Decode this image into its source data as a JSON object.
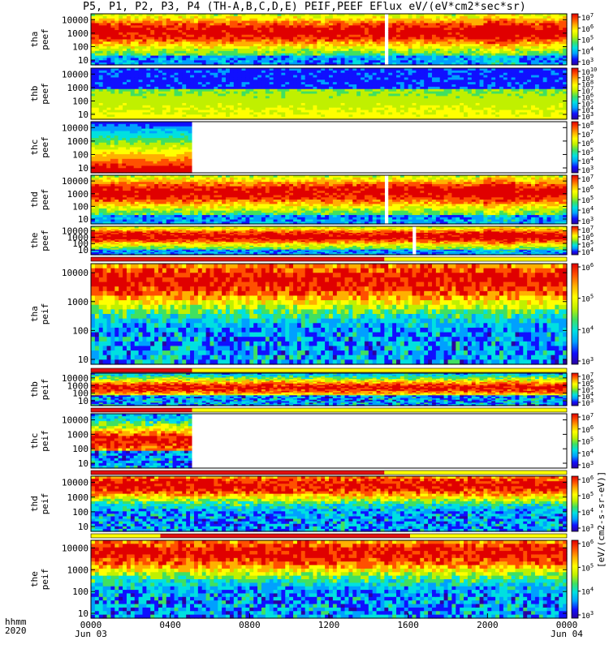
{
  "title": "P5, P1, P2, P3, P4 (TH-A,B,C,D,E) PEIF,PEEF EFlux eV/(eV*cm2*sec*sr)",
  "footer": {
    "xlabel_top": "hhmm",
    "xlabel_bottom": "2020",
    "x_ticks": [
      "0000",
      "0400",
      "0800",
      "1200",
      "1600",
      "2000",
      "0000"
    ],
    "x_dates": [
      "Jun 03",
      "",
      "",
      "",
      "",
      "",
      "Jun 04"
    ]
  },
  "colorbar_label": "[eV/(cm2-s-sr-eV)]",
  "chart_data": {
    "type": "heatmap",
    "x_range": [
      "2020-06-03 00:00",
      "2020-06-04 00:00"
    ],
    "y_scale": "log",
    "panels": [
      {
        "label": [
          "tha",
          "peef"
        ],
        "y_ticks": [
          "10",
          "100",
          "1000",
          "10000"
        ],
        "cbar_ticks": [
          "10^3",
          "10^4",
          "10^5",
          "10^6",
          "10^7"
        ],
        "flag_bar": false,
        "coverage": [
          0,
          24
        ],
        "gaps": [
          [
            14.85,
            15.0
          ]
        ]
      },
      {
        "label": [
          "thb",
          "peef"
        ],
        "y_ticks": [
          "10",
          "100",
          "1000",
          "10000"
        ],
        "cbar_ticks": [
          "10^3",
          "10^4",
          "10^5",
          "10^6",
          "10^7",
          "10^8",
          "10^9",
          "10^10"
        ],
        "flag_bar": false,
        "coverage": [
          0,
          24
        ],
        "gaps": []
      },
      {
        "label": [
          "thc",
          "peef"
        ],
        "y_ticks": [
          "10",
          "100",
          "1000",
          "10000"
        ],
        "cbar_ticks": [
          "10^3",
          "10^4",
          "10^5",
          "10^6",
          "10^7",
          "10^8"
        ],
        "flag_bar": false,
        "coverage": [
          0,
          5.1
        ],
        "gaps": []
      },
      {
        "label": [
          "thd",
          "peef"
        ],
        "y_ticks": [
          "10",
          "100",
          "1000",
          "10000"
        ],
        "cbar_ticks": [
          "10^3",
          "10^4",
          "10^5",
          "10^6",
          "10^7"
        ],
        "flag_bar": false,
        "coverage": [
          0,
          24
        ],
        "gaps": [
          [
            14.85,
            15.0
          ]
        ]
      },
      {
        "label": [
          "the",
          "peef"
        ],
        "y_ticks": [
          "10",
          "100",
          "1000",
          "10000"
        ],
        "cbar_ticks": [
          "10^4",
          "10^5",
          "10^6",
          "10^7"
        ],
        "flag_bar": true,
        "coverage": [
          0,
          24
        ],
        "gaps": [
          [
            16.2,
            16.4
          ]
        ]
      },
      {
        "label": [
          "tha",
          "peif"
        ],
        "y_ticks": [
          "10",
          "100",
          "1000",
          "10000"
        ],
        "cbar_ticks": [
          "10^3",
          "10^4",
          "10^5",
          "10^6"
        ],
        "flag_bar": true,
        "coverage": [
          0,
          24
        ],
        "gaps": []
      },
      {
        "label": [
          "thb",
          "peif"
        ],
        "y_ticks": [
          "10",
          "100",
          "1000",
          "10000"
        ],
        "cbar_ticks": [
          "10^3",
          "10^4",
          "10^5",
          "10^6",
          "10^7"
        ],
        "flag_bar": true,
        "coverage": [
          0,
          24
        ],
        "gaps": []
      },
      {
        "label": [
          "thc",
          "peif"
        ],
        "y_ticks": [
          "10",
          "100",
          "1000",
          "10000"
        ],
        "cbar_ticks": [
          "10^3",
          "10^4",
          "10^5",
          "10^6",
          "10^7"
        ],
        "flag_bar": true,
        "coverage": [
          0,
          5.1
        ],
        "gaps": []
      },
      {
        "label": [
          "thd",
          "peif"
        ],
        "y_ticks": [
          "10",
          "100",
          "1000",
          "10000"
        ],
        "cbar_ticks": [
          "10^3",
          "10^4",
          "10^5",
          "10^6"
        ],
        "flag_bar": true,
        "coverage": [
          0,
          24
        ],
        "gaps": []
      },
      {
        "label": [
          "the",
          "peif"
        ],
        "y_ticks": [
          "10",
          "100",
          "1000",
          "10000"
        ],
        "cbar_ticks": [
          "10^3",
          "10^4",
          "10^5",
          "10^6"
        ],
        "flag_bar": true,
        "coverage": [
          0,
          24
        ],
        "gaps": []
      }
    ],
    "flag_bars": [
      {
        "segments": [
          {
            "from": 0,
            "to": 14.8,
            "color": "#e01010"
          },
          {
            "from": 14.8,
            "to": 24,
            "color": "#ffff00"
          }
        ]
      },
      {
        "segments": [
          {
            "from": 0,
            "to": 5.1,
            "color": "#e01010"
          },
          {
            "from": 5.1,
            "to": 24,
            "color": "#ffff00"
          }
        ]
      },
      {
        "segments": [
          {
            "from": 0,
            "to": 5.1,
            "color": "#e01010"
          },
          {
            "from": 5.1,
            "to": 24,
            "color": "#ffff00"
          }
        ]
      },
      {
        "segments": [
          {
            "from": 0,
            "to": 14.8,
            "color": "#e01010"
          },
          {
            "from": 14.8,
            "to": 24,
            "color": "#ffff00"
          }
        ]
      },
      {
        "segments": [
          {
            "from": 0,
            "to": 3.5,
            "color": "#ffff00"
          },
          {
            "from": 3.5,
            "to": 16.1,
            "color": "#e01010"
          },
          {
            "from": 16.1,
            "to": 24,
            "color": "#ffff00"
          }
        ]
      }
    ],
    "colormap": [
      "#2a00a0",
      "#1010ff",
      "#00a0ff",
      "#00e0e0",
      "#40e060",
      "#c0f000",
      "#ffff00",
      "#ffb000",
      "#ff5000",
      "#e00000"
    ]
  }
}
